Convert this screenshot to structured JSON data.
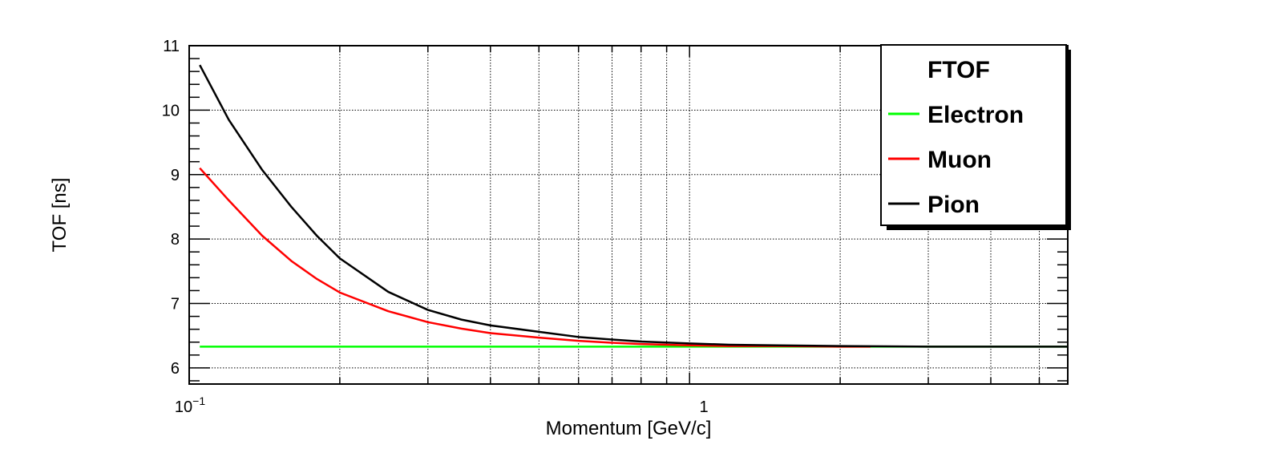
{
  "chart_data": {
    "type": "line",
    "title": "",
    "xlabel": "Momentum [GeV/c]",
    "ylabel": "TOF [ns]",
    "x_scale": "log",
    "xlim": [
      0.1,
      5.7
    ],
    "ylim": [
      5.75,
      11
    ],
    "grid": true,
    "legend_position": "top-right",
    "x_tick_labels": [
      {
        "value": 0.1,
        "base": "10",
        "exp": "−1"
      },
      {
        "value": 1,
        "base": "1",
        "exp": ""
      }
    ],
    "y_ticks": [
      6,
      7,
      8,
      9,
      10,
      11
    ],
    "legend": {
      "header": "FTOF",
      "entries": [
        "Electron",
        "Muon",
        "Pion"
      ]
    },
    "series": [
      {
        "name": "Electron",
        "color": "#00ff00",
        "x": [
          0.105,
          0.2,
          0.5,
          1.0,
          2.0,
          5.7
        ],
        "y": [
          6.33,
          6.33,
          6.33,
          6.33,
          6.33,
          6.33
        ]
      },
      {
        "name": "Muon",
        "color": "#ff0000",
        "x": [
          0.105,
          0.12,
          0.14,
          0.16,
          0.18,
          0.2,
          0.25,
          0.3,
          0.35,
          0.4,
          0.5,
          0.6,
          0.7,
          0.8,
          1.0,
          1.2,
          1.5,
          2.0,
          2.3
        ],
        "y": [
          9.1,
          8.6,
          8.05,
          7.66,
          7.38,
          7.17,
          6.88,
          6.71,
          6.61,
          6.54,
          6.47,
          6.42,
          6.39,
          6.37,
          6.35,
          6.34,
          6.34,
          6.33,
          6.33
        ]
      },
      {
        "name": "Pion",
        "color": "#000000",
        "x": [
          0.105,
          0.12,
          0.14,
          0.16,
          0.18,
          0.2,
          0.25,
          0.3,
          0.35,
          0.4,
          0.5,
          0.6,
          0.7,
          0.8,
          1.0,
          1.2,
          1.5,
          2.0,
          3.0,
          5.7
        ],
        "y": [
          10.7,
          9.85,
          9.07,
          8.5,
          8.05,
          7.7,
          7.18,
          6.9,
          6.75,
          6.66,
          6.56,
          6.48,
          6.44,
          6.41,
          6.38,
          6.36,
          6.35,
          6.34,
          6.33,
          6.33
        ]
      }
    ]
  }
}
